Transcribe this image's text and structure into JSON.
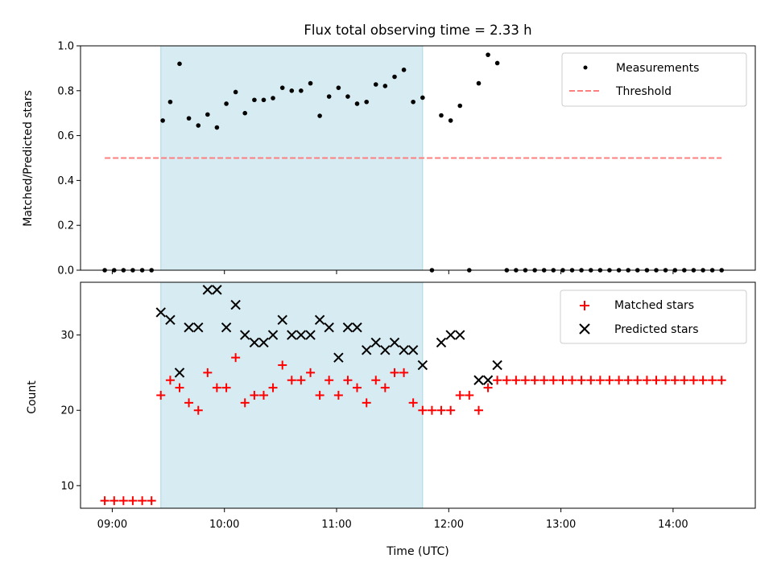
{
  "chart_data": [
    {
      "type": "scatter",
      "title": "Flux total observing time = 2.33 h",
      "ylabel": "Matched/Predicted stars",
      "xlim": [
        8.717,
        14.733
      ],
      "ylim": [
        0,
        1.0
      ],
      "yticks": [
        0.0,
        0.2,
        0.4,
        0.6,
        0.8,
        1.0
      ],
      "ytick_labels": [
        "0.0",
        "0.2",
        "0.4",
        "0.6",
        "0.8",
        "1.0"
      ],
      "shaded_x_range": [
        9.433,
        11.767
      ],
      "shaded_color": "#add8e6",
      "legend_position": "top-right",
      "series": [
        {
          "name": "Measurements",
          "marker": "dot",
          "color": "#000000",
          "x": [
            8.933,
            9.017,
            9.1,
            9.183,
            9.267,
            9.35,
            9.45,
            9.517,
            9.6,
            9.683,
            9.767,
            9.85,
            9.933,
            10.017,
            10.1,
            10.183,
            10.267,
            10.35,
            10.433,
            10.517,
            10.6,
            10.683,
            10.767,
            10.85,
            10.933,
            11.017,
            11.1,
            11.183,
            11.267,
            11.35,
            11.433,
            11.517,
            11.6,
            11.683,
            11.767,
            11.85,
            11.933,
            12.017,
            12.1,
            12.183,
            12.267,
            12.35,
            12.433,
            12.517,
            12.6,
            12.683,
            12.767,
            12.85,
            12.933,
            13.017,
            13.1,
            13.183,
            13.267,
            13.35,
            13.433,
            13.517,
            13.6,
            13.683,
            13.767,
            13.85,
            13.933,
            14.017,
            14.1,
            14.183,
            14.267,
            14.35,
            14.433
          ],
          "values": [
            0,
            0,
            0,
            0,
            0,
            0,
            0.667,
            0.75,
            0.92,
            0.677,
            0.645,
            0.694,
            0.636,
            0.742,
            0.794,
            0.7,
            0.759,
            0.759,
            0.767,
            0.813,
            0.8,
            0.8,
            0.833,
            0.688,
            0.774,
            0.813,
            0.774,
            0.742,
            0.75,
            0.828,
            0.821,
            0.862,
            0.893,
            0.75,
            0.769,
            0,
            0.69,
            0.667,
            0.733,
            0,
            0.833,
            0.96,
            0.923,
            0,
            0,
            0,
            0,
            0,
            0,
            0,
            0,
            0,
            0,
            0,
            0,
            0,
            0,
            0,
            0,
            0,
            0,
            0,
            0,
            0,
            0,
            0,
            0
          ]
        },
        {
          "name": "Threshold",
          "marker": "dashed-line",
          "color": "#ff7f7f",
          "x": [
            8.933,
            14.433
          ],
          "values": [
            0.5,
            0.5
          ]
        }
      ]
    },
    {
      "type": "scatter",
      "xlabel": "Time (UTC)",
      "ylabel": "Count",
      "xlim": [
        8.717,
        14.733
      ],
      "ylim": [
        7,
        37
      ],
      "xticks": [
        9,
        10,
        11,
        12,
        13,
        14
      ],
      "xtick_labels": [
        "09:00",
        "10:00",
        "11:00",
        "12:00",
        "13:00",
        "14:00"
      ],
      "yticks": [
        10,
        20,
        30
      ],
      "ytick_labels": [
        "10",
        "20",
        "30"
      ],
      "shaded_x_range": [
        9.433,
        11.767
      ],
      "shaded_color": "#add8e6",
      "legend_position": "top-right",
      "series": [
        {
          "name": "Matched stars",
          "marker": "plus",
          "color": "#ff0000",
          "x": [
            8.933,
            9.017,
            9.1,
            9.183,
            9.267,
            9.35,
            9.433,
            9.517,
            9.6,
            9.683,
            9.767,
            9.85,
            9.933,
            10.017,
            10.1,
            10.183,
            10.267,
            10.35,
            10.433,
            10.517,
            10.6,
            10.683,
            10.767,
            10.85,
            10.933,
            11.017,
            11.1,
            11.183,
            11.267,
            11.35,
            11.433,
            11.517,
            11.6,
            11.683,
            11.767,
            11.85,
            11.933,
            12.017,
            12.1,
            12.183,
            12.267,
            12.35,
            12.433,
            12.517,
            12.6,
            12.683,
            12.767,
            12.85,
            12.933,
            13.017,
            13.1,
            13.183,
            13.267,
            13.35,
            13.433,
            13.517,
            13.6,
            13.683,
            13.767,
            13.85,
            13.933,
            14.017,
            14.1,
            14.183,
            14.267,
            14.35,
            14.433
          ],
          "values": [
            8,
            8,
            8,
            8,
            8,
            8,
            22,
            24,
            23,
            21,
            20,
            25,
            23,
            23,
            27,
            21,
            22,
            22,
            23,
            26,
            24,
            24,
            25,
            22,
            24,
            22,
            24,
            23,
            21,
            24,
            23,
            25,
            25,
            21,
            20,
            20,
            20,
            20,
            22,
            22,
            20,
            23,
            24,
            24,
            24,
            24,
            24,
            24,
            24,
            24,
            24,
            24,
            24,
            24,
            24,
            24,
            24,
            24,
            24,
            24,
            24,
            24,
            24,
            24,
            24,
            24,
            24
          ]
        },
        {
          "name": "Predicted stars",
          "marker": "x",
          "color": "#000000",
          "x": [
            9.433,
            9.517,
            9.6,
            9.683,
            9.767,
            9.85,
            9.933,
            10.017,
            10.1,
            10.183,
            10.267,
            10.35,
            10.433,
            10.517,
            10.6,
            10.683,
            10.767,
            10.85,
            10.933,
            11.017,
            11.1,
            11.183,
            11.267,
            11.35,
            11.433,
            11.517,
            11.6,
            11.683,
            11.767,
            11.933,
            12.017,
            12.1,
            12.267,
            12.35,
            12.433
          ],
          "values": [
            33,
            32,
            25,
            31,
            31,
            36,
            36,
            31,
            34,
            30,
            29,
            29,
            30,
            32,
            30,
            30,
            30,
            32,
            31,
            27,
            31,
            31,
            28,
            29,
            28,
            29,
            28,
            28,
            26,
            29,
            30,
            30,
            24,
            24,
            26
          ]
        }
      ]
    }
  ]
}
